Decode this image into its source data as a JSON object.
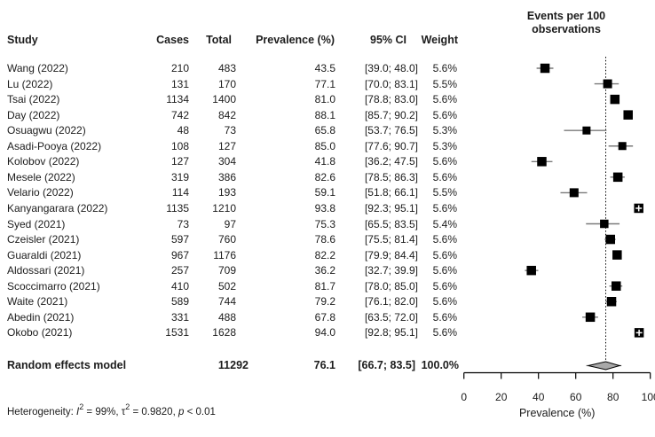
{
  "plot_title": {
    "line1": "Events per 100",
    "line2": "observations"
  },
  "columns": {
    "study": "Study",
    "cases": "Cases",
    "total": "Total",
    "prevalence": "Prevalence (%)",
    "ci": "95% CI",
    "weight": "Weight"
  },
  "chart_data": {
    "type": "forest",
    "title": "Events per 100 observations",
    "xlabel": "Prevalence (%)",
    "xlim": [
      0,
      100
    ],
    "xticks": [
      0,
      20,
      40,
      60,
      80,
      100
    ],
    "reference_line": 76.1,
    "studies": [
      {
        "study": "Wang (2022)",
        "cases": 210,
        "total": 483,
        "prevalence": 43.5,
        "ci_low": 39.0,
        "ci_high": 48.0,
        "ci_label": "[39.0; 48.0]",
        "weight": "5.6%"
      },
      {
        "study": "Lu (2022)",
        "cases": 131,
        "total": 170,
        "prevalence": 77.1,
        "ci_low": 70.0,
        "ci_high": 83.1,
        "ci_label": "[70.0; 83.1]",
        "weight": "5.5%"
      },
      {
        "study": "Tsai (2022)",
        "cases": 1134,
        "total": 1400,
        "prevalence": 81.0,
        "ci_low": 78.8,
        "ci_high": 83.0,
        "ci_label": "[78.8; 83.0]",
        "weight": "5.6%"
      },
      {
        "study": "Day (2022)",
        "cases": 742,
        "total": 842,
        "prevalence": 88.1,
        "ci_low": 85.7,
        "ci_high": 90.2,
        "ci_label": "[85.7; 90.2]",
        "weight": "5.6%"
      },
      {
        "study": "Osuagwu (2022)",
        "cases": 48,
        "total": 73,
        "prevalence": 65.8,
        "ci_low": 53.7,
        "ci_high": 76.5,
        "ci_label": "[53.7; 76.5]",
        "weight": "5.3%"
      },
      {
        "study": "Asadi-Pooya (2022)",
        "cases": 108,
        "total": 127,
        "prevalence": 85.0,
        "ci_low": 77.6,
        "ci_high": 90.7,
        "ci_label": "[77.6; 90.7]",
        "weight": "5.3%"
      },
      {
        "study": "Kolobov (2022)",
        "cases": 127,
        "total": 304,
        "prevalence": 41.8,
        "ci_low": 36.2,
        "ci_high": 47.5,
        "ci_label": "[36.2; 47.5]",
        "weight": "5.6%"
      },
      {
        "study": "Mesele (2022)",
        "cases": 319,
        "total": 386,
        "prevalence": 82.6,
        "ci_low": 78.5,
        "ci_high": 86.3,
        "ci_label": "[78.5; 86.3]",
        "weight": "5.6%"
      },
      {
        "study": "Velario (2022)",
        "cases": 114,
        "total": 193,
        "prevalence": 59.1,
        "ci_low": 51.8,
        "ci_high": 66.1,
        "ci_label": "[51.8; 66.1]",
        "weight": "5.5%"
      },
      {
        "study": "Kanyangarara (2022)",
        "cases": 1135,
        "total": 1210,
        "prevalence": 93.8,
        "ci_low": 92.3,
        "ci_high": 95.1,
        "ci_label": "[92.3; 95.1]",
        "weight": "5.6%"
      },
      {
        "study": "Syed (2021)",
        "cases": 73,
        "total": 97,
        "prevalence": 75.3,
        "ci_low": 65.5,
        "ci_high": 83.5,
        "ci_label": "[65.5; 83.5]",
        "weight": "5.4%"
      },
      {
        "study": "Czeisler (2021)",
        "cases": 597,
        "total": 760,
        "prevalence": 78.6,
        "ci_low": 75.5,
        "ci_high": 81.4,
        "ci_label": "[75.5; 81.4]",
        "weight": "5.6%"
      },
      {
        "study": "Guaraldi (2021)",
        "cases": 967,
        "total": 1176,
        "prevalence": 82.2,
        "ci_low": 79.9,
        "ci_high": 84.4,
        "ci_label": "[79.9; 84.4]",
        "weight": "5.6%"
      },
      {
        "study": "Aldossari (2021)",
        "cases": 257,
        "total": 709,
        "prevalence": 36.2,
        "ci_low": 32.7,
        "ci_high": 39.9,
        "ci_label": "[32.7; 39.9]",
        "weight": "5.6%"
      },
      {
        "study": "Scoccimarro (2021)",
        "cases": 410,
        "total": 502,
        "prevalence": 81.7,
        "ci_low": 78.0,
        "ci_high": 85.0,
        "ci_label": "[78.0; 85.0]",
        "weight": "5.6%"
      },
      {
        "study": "Waite (2021)",
        "cases": 589,
        "total": 744,
        "prevalence": 79.2,
        "ci_low": 76.1,
        "ci_high": 82.0,
        "ci_label": "[76.1; 82.0]",
        "weight": "5.6%"
      },
      {
        "study": "Abedin (2021)",
        "cases": 331,
        "total": 488,
        "prevalence": 67.8,
        "ci_low": 63.5,
        "ci_high": 72.0,
        "ci_label": "[63.5; 72.0]",
        "weight": "5.6%"
      },
      {
        "study": "Okobo (2021)",
        "cases": 1531,
        "total": 1628,
        "prevalence": 94.0,
        "ci_low": 92.8,
        "ci_high": 95.1,
        "ci_label": "[92.8; 95.1]",
        "weight": "5.6%"
      }
    ],
    "summary": {
      "label": "Random effects model",
      "total": 11292,
      "prevalence": 76.1,
      "ci_low": 66.7,
      "ci_high": 83.5,
      "ci_label": "[66.7; 83.5]",
      "weight": "100.0%"
    },
    "heterogeneity_parts": [
      {
        "text": "Heterogeneity: "
      },
      {
        "text": "I",
        "italic": true
      },
      {
        "text": "2",
        "sup": true
      },
      {
        "text": " = 99%, "
      },
      {
        "text": "τ"
      },
      {
        "text": "2",
        "sup": true
      },
      {
        "text": " = 0.9820, "
      },
      {
        "text": "p",
        "italic": true
      },
      {
        "text": " < 0.01"
      }
    ],
    "colors": {
      "square": "#000000",
      "ci_line": "#7a7a7a",
      "diamond_fill": "#a8a8a8",
      "diamond_stroke": "#000000",
      "axis": "#000000",
      "text": "#1c1c1c"
    }
  }
}
